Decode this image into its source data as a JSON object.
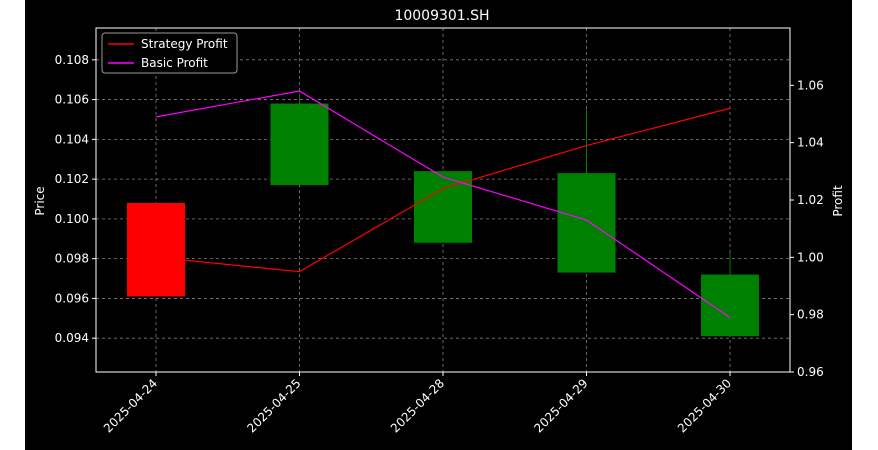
{
  "chart_data": {
    "type": "candlestick",
    "title": "10009301.SH",
    "xlabel": "",
    "ylabel": "Price",
    "y2label": "Profit",
    "categories": [
      "2025-04-24",
      "2025-04-25",
      "2025-04-28",
      "2025-04-29",
      "2025-04-30"
    ],
    "ylim": [
      0.0923,
      0.1096
    ],
    "yticks": [
      "0.094",
      "0.096",
      "0.098",
      "0.100",
      "0.102",
      "0.104",
      "0.106",
      "0.108"
    ],
    "y2lim": [
      0.96,
      1.08
    ],
    "y2ticks": [
      "0.96",
      "0.98",
      "1.00",
      "1.02",
      "1.04",
      "1.06"
    ],
    "grid": true,
    "legend_position": "top-left",
    "candles": [
      {
        "date": "2025-04-24",
        "open": 0.1008,
        "close": 0.0961,
        "high": 0.1008,
        "low": 0.0961,
        "color": "#ff0000"
      },
      {
        "date": "2025-04-25",
        "open": 0.1017,
        "close": 0.1058,
        "high": 0.1063,
        "low": 0.1017,
        "color": "#008000"
      },
      {
        "date": "2025-04-28",
        "open": 0.0988,
        "close": 0.1024,
        "high": 0.1024,
        "low": 0.0988,
        "color": "#008000"
      },
      {
        "date": "2025-04-29",
        "open": 0.0973,
        "close": 0.1023,
        "high": 0.1055,
        "low": 0.0973,
        "color": "#008000"
      },
      {
        "date": "2025-04-30",
        "open": 0.0941,
        "close": 0.0972,
        "high": 0.0983,
        "low": 0.0941,
        "color": "#008000"
      }
    ],
    "series": [
      {
        "name": "Strategy Profit",
        "color": "#ff0000",
        "axis": "right",
        "values": [
          1.0,
          0.995,
          1.024,
          1.039,
          1.052
        ]
      },
      {
        "name": "Basic Profit",
        "color": "#ff00ff",
        "axis": "right",
        "values": [
          1.049,
          1.058,
          1.028,
          1.013,
          0.979
        ]
      }
    ]
  },
  "colors": {
    "background": "#000000",
    "frame": "#ffffff",
    "grid": "#808080",
    "text": "#ffffff",
    "page": "#ffffff"
  }
}
